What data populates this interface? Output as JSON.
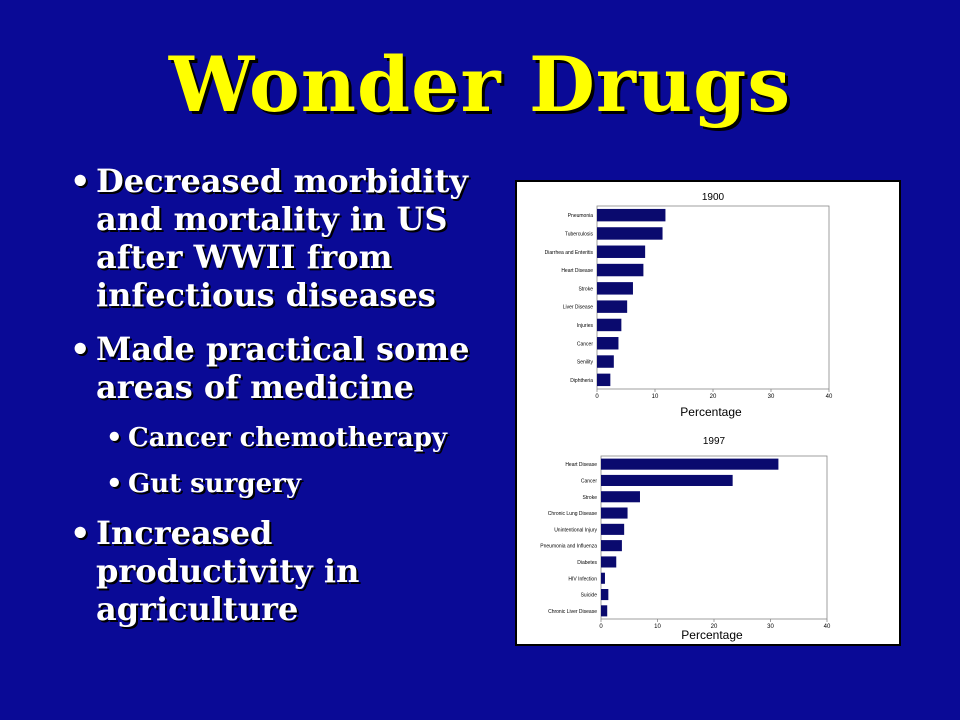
{
  "slide": {
    "title": "Wonder Drugs",
    "bullets": [
      {
        "text": "Decreased morbidity and mortality in US after WWII from infectious diseases"
      },
      {
        "text": "Made practical some areas of medicine",
        "sub": [
          "Cancer chemotherapy",
          "Gut surgery"
        ]
      },
      {
        "text": "Increased productivity in agriculture"
      }
    ]
  },
  "colors": {
    "background": "#0a0a96",
    "title": "#ffff00",
    "text": "#ffffff",
    "bar": "#0a0a6e"
  },
  "chart_data": [
    {
      "type": "bar",
      "orientation": "horizontal",
      "title": "1900",
      "xlabel": "Percentage",
      "categories": [
        "Pneumonia",
        "Tuberculosis",
        "Diarrhea and Enteritis",
        "Heart Disease",
        "Stroke",
        "Liver Disease",
        "Injuries",
        "Cancer",
        "Senility",
        "Diphtheria"
      ],
      "values": [
        11.8,
        11.3,
        8.3,
        8.0,
        6.2,
        5.2,
        4.2,
        3.7,
        2.9,
        2.3
      ],
      "xlim": [
        0,
        40
      ],
      "xticks": [
        0,
        10,
        20,
        30,
        40
      ]
    },
    {
      "type": "bar",
      "orientation": "horizontal",
      "title": "1997",
      "xlabel": "Percentage",
      "categories": [
        "Heart Disease",
        "Cancer",
        "Stroke",
        "Chronic Lung Disease",
        "Unintentional Injury",
        "Pneumonia and Influenza",
        "Diabetes",
        "HIV Infection",
        "Suicide",
        "Chronic Liver Disease"
      ],
      "values": [
        31.4,
        23.3,
        6.9,
        4.7,
        4.1,
        3.7,
        2.7,
        0.7,
        1.3,
        1.1
      ],
      "xlim": [
        0,
        40
      ],
      "xticks": [
        0,
        10,
        20,
        30,
        40
      ]
    }
  ]
}
